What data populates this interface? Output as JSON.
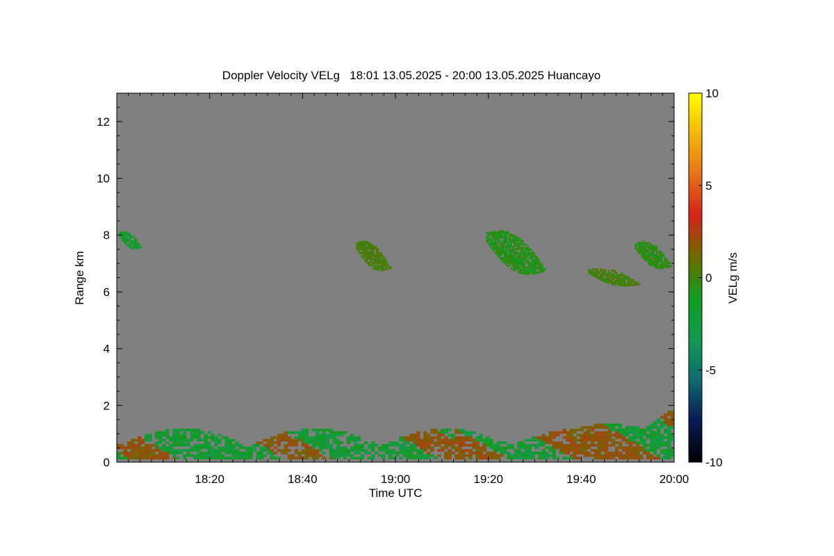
{
  "chart_data": {
    "type": "heatmap",
    "title": "Doppler Velocity VELg   18:01 13.05.2025 - 20:00 13.05.2025 Huancayo",
    "xlabel": "Time UTC",
    "ylabel": "Range km",
    "x_range_minutes": [
      0,
      120
    ],
    "x_ticks": [
      {
        "minute": 20,
        "label": "18:20"
      },
      {
        "minute": 40,
        "label": "18:40"
      },
      {
        "minute": 60,
        "label": "19:00"
      },
      {
        "minute": 80,
        "label": "19:20"
      },
      {
        "minute": 100,
        "label": "19:40"
      },
      {
        "minute": 120,
        "label": "20:00"
      }
    ],
    "ylim": [
      0,
      13
    ],
    "y_ticks": [
      0,
      2,
      4,
      6,
      8,
      10,
      12
    ],
    "y_tick_labels": [
      "0",
      "2",
      "4",
      "6",
      "8",
      "10",
      "12"
    ],
    "colorbar": {
      "label": "VELg m/s",
      "range": [
        -10,
        10
      ],
      "ticks": [
        10,
        5,
        0,
        -5,
        -10
      ],
      "tick_labels": [
        "10",
        "5",
        "0",
        "-5",
        "-10"
      ],
      "colors": [
        "#000000",
        "#0a1a55",
        "#0f6a70",
        "#149a4f",
        "#119b21",
        "#6b6b00",
        "#d2231a",
        "#e6721a",
        "#f3b60d",
        "#ffff00"
      ]
    },
    "background_color": "#808080",
    "features": [
      {
        "t_start": 0.5,
        "t_end": 5.5,
        "r_min": 7.3,
        "r_max": 8.0,
        "velocity": -1.5
      },
      {
        "t_start": 51.5,
        "t_end": 59.5,
        "r_min": 6.4,
        "r_max": 7.6,
        "velocity": 0.3
      },
      {
        "t_start": 79.5,
        "t_end": 93.5,
        "r_min": 6.1,
        "r_max": 7.9,
        "velocity": -0.6
      },
      {
        "t_start": 101.5,
        "t_end": 113.5,
        "r_min": 6.0,
        "r_max": 6.7,
        "velocity": 0.2
      },
      {
        "t_start": 111.5,
        "t_end": 120.0,
        "r_min": 6.5,
        "r_max": 7.6,
        "velocity": -0.4
      }
    ],
    "boundary_layer": {
      "t_range": [
        0,
        120
      ],
      "r_max": 1.9,
      "velocity_range": [
        -3.5,
        2.5
      ]
    }
  }
}
